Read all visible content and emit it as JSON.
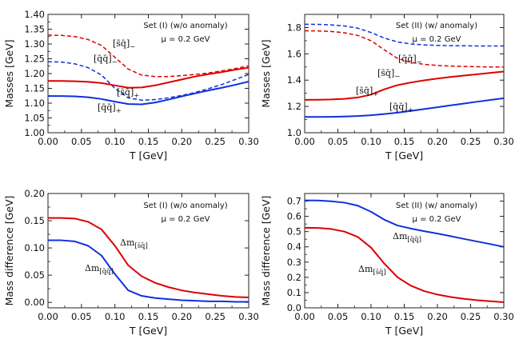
{
  "chart_data": [
    {
      "type": "line",
      "panel": "top-left",
      "title": "",
      "set_label": "Set (I) (w/o anomaly)",
      "param_label": "μ = 0.2 GeV",
      "xlabel": "T [GeV]",
      "ylabel": "Masses [GeV]",
      "xlim": [
        0,
        0.3
      ],
      "ylim": [
        1.0,
        1.4
      ],
      "xticks": [
        "0.00",
        "0.05",
        "0.10",
        "0.15",
        "0.20",
        "0.25",
        "0.30"
      ],
      "yticks": [
        "1.00",
        "1.05",
        "1.10",
        "1.15",
        "1.20",
        "1.25",
        "1.30",
        "1.35",
        "1.40"
      ],
      "series": [
        {
          "name": "[s̄q̄]−",
          "label_main": "[s̄q̄]",
          "label_sub": "−",
          "color": "#dd0000",
          "dashed": true,
          "x": [
            0,
            0.02,
            0.04,
            0.06,
            0.08,
            0.1,
            0.12,
            0.14,
            0.16,
            0.18,
            0.2,
            0.22,
            0.24,
            0.26,
            0.28,
            0.3
          ],
          "y": [
            1.33,
            1.329,
            1.325,
            1.315,
            1.295,
            1.255,
            1.215,
            1.195,
            1.19,
            1.19,
            1.193,
            1.197,
            1.202,
            1.209,
            1.217,
            1.226
          ]
        },
        {
          "name": "[q̄q̄]−",
          "label_main": "[q̄q̄]",
          "label_sub": "−",
          "color": "#1030dd",
          "dashed": true,
          "x": [
            0,
            0.02,
            0.04,
            0.06,
            0.08,
            0.1,
            0.12,
            0.14,
            0.16,
            0.18,
            0.2,
            0.22,
            0.24,
            0.26,
            0.28,
            0.3
          ],
          "y": [
            1.24,
            1.239,
            1.233,
            1.22,
            1.195,
            1.15,
            1.118,
            1.11,
            1.112,
            1.118,
            1.126,
            1.136,
            1.149,
            1.163,
            1.18,
            1.197
          ]
        },
        {
          "name": "[s̄q̄]+",
          "label_main": "[s̄q̄]",
          "label_sub": "+",
          "color": "#dd0000",
          "dashed": false,
          "x": [
            0,
            0.02,
            0.04,
            0.06,
            0.08,
            0.1,
            0.12,
            0.14,
            0.16,
            0.18,
            0.2,
            0.22,
            0.24,
            0.26,
            0.28,
            0.3
          ],
          "y": [
            1.175,
            1.175,
            1.174,
            1.172,
            1.168,
            1.16,
            1.152,
            1.153,
            1.16,
            1.17,
            1.18,
            1.19,
            1.198,
            1.205,
            1.213,
            1.22
          ]
        },
        {
          "name": "[q̄q̄]+",
          "label_main": "[q̄q̄]",
          "label_sub": "+",
          "color": "#1030dd",
          "dashed": false,
          "x": [
            0,
            0.02,
            0.04,
            0.06,
            0.08,
            0.1,
            0.12,
            0.14,
            0.16,
            0.18,
            0.2,
            0.22,
            0.24,
            0.26,
            0.28,
            0.3
          ],
          "y": [
            1.124,
            1.124,
            1.123,
            1.12,
            1.114,
            1.105,
            1.097,
            1.096,
            1.102,
            1.112,
            1.123,
            1.133,
            1.143,
            1.152,
            1.162,
            1.173
          ]
        }
      ]
    },
    {
      "type": "line",
      "panel": "top-right",
      "title": "",
      "set_label": "Set (II) (w/ anomaly)",
      "param_label": "μ = 0.2 GeV",
      "xlabel": "T [GeV]",
      "ylabel": "Masses [GeV]",
      "xlim": [
        0,
        0.3
      ],
      "ylim": [
        1.0,
        1.9
      ],
      "xticks": [
        "0.00",
        "0.05",
        "0.10",
        "0.15",
        "0.20",
        "0.25",
        "0.30"
      ],
      "yticks": [
        "1.0",
        "1.2",
        "1.4",
        "1.6",
        "1.8"
      ],
      "series": [
        {
          "name": "[q̄q̄]−",
          "label_main": "[q̄q̄]",
          "label_sub": "−",
          "color": "#1030dd",
          "dashed": true,
          "x": [
            0,
            0.02,
            0.04,
            0.06,
            0.08,
            0.1,
            0.12,
            0.14,
            0.16,
            0.18,
            0.2,
            0.22,
            0.24,
            0.26,
            0.28,
            0.3
          ],
          "y": [
            1.825,
            1.824,
            1.82,
            1.812,
            1.795,
            1.762,
            1.72,
            1.69,
            1.675,
            1.668,
            1.664,
            1.662,
            1.661,
            1.66,
            1.66,
            1.66
          ]
        },
        {
          "name": "[s̄q̄]−",
          "label_main": "[s̄q̄]",
          "label_sub": "−",
          "color": "#dd0000",
          "dashed": true,
          "x": [
            0,
            0.02,
            0.04,
            0.06,
            0.08,
            0.1,
            0.12,
            0.14,
            0.16,
            0.18,
            0.2,
            0.22,
            0.24,
            0.26,
            0.28,
            0.3
          ],
          "y": [
            1.775,
            1.774,
            1.77,
            1.76,
            1.74,
            1.7,
            1.63,
            1.565,
            1.535,
            1.52,
            1.512,
            1.507,
            1.504,
            1.502,
            1.5,
            1.5
          ]
        },
        {
          "name": "[s̄q̄]+",
          "label_main": "[s̄q̄]",
          "label_sub": "+",
          "color": "#dd0000",
          "dashed": false,
          "x": [
            0,
            0.02,
            0.04,
            0.06,
            0.08,
            0.1,
            0.12,
            0.14,
            0.16,
            0.18,
            0.2,
            0.22,
            0.24,
            0.26,
            0.28,
            0.3
          ],
          "y": [
            1.25,
            1.251,
            1.253,
            1.258,
            1.268,
            1.29,
            1.33,
            1.362,
            1.382,
            1.398,
            1.412,
            1.424,
            1.435,
            1.445,
            1.455,
            1.465
          ]
        },
        {
          "name": "[q̄q̄]+",
          "label_main": "[q̄q̄]",
          "label_sub": "+",
          "color": "#1030dd",
          "dashed": false,
          "x": [
            0,
            0.02,
            0.04,
            0.06,
            0.08,
            0.1,
            0.12,
            0.14,
            0.16,
            0.18,
            0.2,
            0.22,
            0.24,
            0.26,
            0.28,
            0.3
          ],
          "y": [
            1.12,
            1.12,
            1.121,
            1.123,
            1.127,
            1.133,
            1.142,
            1.153,
            1.166,
            1.18,
            1.194,
            1.208,
            1.222,
            1.236,
            1.249,
            1.262
          ]
        }
      ]
    },
    {
      "type": "line",
      "panel": "bottom-left",
      "title": "",
      "set_label": "Set (I) (w/o anomaly)",
      "param_label": "μ = 0.2 GeV",
      "xlabel": "T [GeV]",
      "ylabel": "Mass difference [GeV]",
      "xlim": [
        0,
        0.3
      ],
      "ylim": [
        -0.01,
        0.2
      ],
      "xticks": [
        "0.00",
        "0.05",
        "0.10",
        "0.15",
        "0.20",
        "0.25",
        "0.30"
      ],
      "yticks": [
        "0.00",
        "0.05",
        "0.10",
        "0.15",
        "0.20"
      ],
      "series": [
        {
          "name": "Δm[s̄q̄]",
          "label_main": "Δm",
          "label_sub": "[s̄q̄]",
          "color": "#dd0000",
          "dashed": false,
          "x": [
            0,
            0.02,
            0.04,
            0.06,
            0.08,
            0.1,
            0.12,
            0.14,
            0.16,
            0.18,
            0.2,
            0.22,
            0.24,
            0.26,
            0.28,
            0.3
          ],
          "y": [
            0.155,
            0.155,
            0.154,
            0.148,
            0.134,
            0.104,
            0.068,
            0.048,
            0.036,
            0.028,
            0.022,
            0.018,
            0.015,
            0.012,
            0.01,
            0.009
          ]
        },
        {
          "name": "Δm[q̄q̄]",
          "label_main": "Δm",
          "label_sub": "[q̄q̄]",
          "color": "#1030dd",
          "dashed": false,
          "x": [
            0,
            0.02,
            0.04,
            0.06,
            0.08,
            0.1,
            0.12,
            0.14,
            0.16,
            0.18,
            0.2,
            0.22,
            0.24,
            0.26,
            0.28,
            0.3
          ],
          "y": [
            0.114,
            0.114,
            0.112,
            0.104,
            0.086,
            0.052,
            0.022,
            0.012,
            0.008,
            0.006,
            0.004,
            0.003,
            0.002,
            0.002,
            0.001,
            0.001
          ]
        }
      ]
    },
    {
      "type": "line",
      "panel": "bottom-right",
      "title": "",
      "set_label": "Set (II) (w/ anomaly)",
      "param_label": "μ = 0.2 GeV",
      "xlabel": "T [GeV]",
      "ylabel": "Mass difference [GeV]",
      "xlim": [
        0,
        0.3
      ],
      "ylim": [
        0.0,
        0.75
      ],
      "xticks": [
        "0.00",
        "0.05",
        "0.10",
        "0.15",
        "0.20",
        "0.25",
        "0.30"
      ],
      "yticks": [
        "0.0",
        "0.1",
        "0.2",
        "0.3",
        "0.4",
        "0.5",
        "0.6",
        "0.7"
      ],
      "series": [
        {
          "name": "Δm[q̄q̄]",
          "label_main": "Δm",
          "label_sub": "[q̄q̄]",
          "color": "#1030dd",
          "dashed": false,
          "x": [
            0,
            0.02,
            0.04,
            0.06,
            0.08,
            0.1,
            0.12,
            0.14,
            0.16,
            0.18,
            0.2,
            0.22,
            0.24,
            0.26,
            0.28,
            0.3
          ],
          "y": [
            0.705,
            0.704,
            0.699,
            0.69,
            0.67,
            0.63,
            0.578,
            0.54,
            0.52,
            0.503,
            0.487,
            0.47,
            0.452,
            0.435,
            0.418,
            0.4
          ]
        },
        {
          "name": "Δm[s̄q̄]",
          "label_main": "Δm",
          "label_sub": "[s̄q̄]",
          "color": "#dd0000",
          "dashed": false,
          "x": [
            0,
            0.02,
            0.04,
            0.06,
            0.08,
            0.1,
            0.12,
            0.14,
            0.16,
            0.18,
            0.2,
            0.22,
            0.24,
            0.26,
            0.28,
            0.3
          ],
          "y": [
            0.525,
            0.524,
            0.517,
            0.5,
            0.465,
            0.395,
            0.29,
            0.2,
            0.145,
            0.11,
            0.087,
            0.071,
            0.059,
            0.05,
            0.043,
            0.037
          ]
        }
      ]
    }
  ]
}
